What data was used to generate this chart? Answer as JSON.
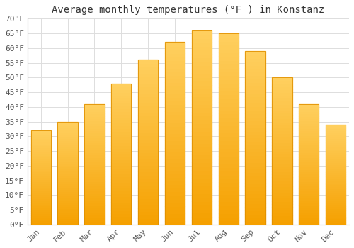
{
  "title": "Average monthly temperatures (°F ) in Konstanz",
  "months": [
    "Jan",
    "Feb",
    "Mar",
    "Apr",
    "May",
    "Jun",
    "Jul",
    "Aug",
    "Sep",
    "Oct",
    "Nov",
    "Dec"
  ],
  "values": [
    32,
    35,
    41,
    48,
    56,
    62,
    66,
    65,
    59,
    50,
    41,
    34
  ],
  "bar_color_top": "#FFC020",
  "bar_color_bottom": "#F5A000",
  "bar_edge_color": "#E09000",
  "background_color": "#FFFFFF",
  "grid_color": "#DDDDDD",
  "ylim": [
    0,
    70
  ],
  "ytick_step": 5,
  "title_fontsize": 10,
  "tick_fontsize": 8,
  "font_family": "monospace"
}
